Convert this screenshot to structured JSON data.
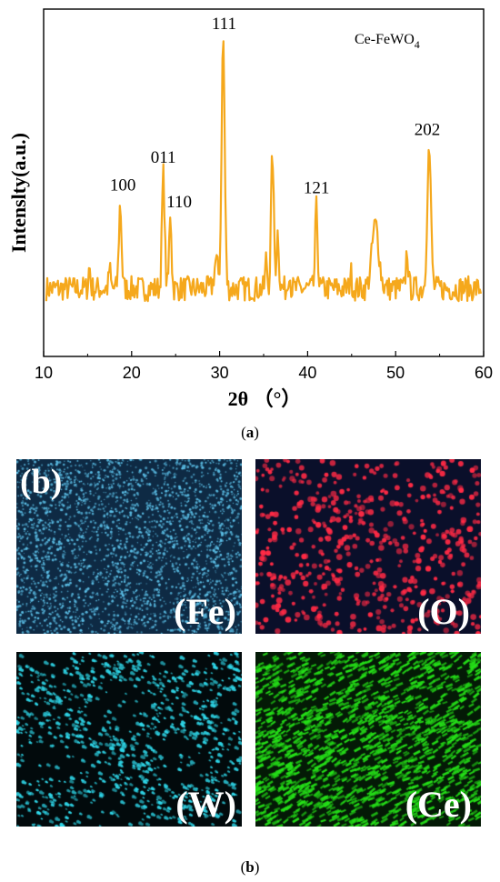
{
  "chart_data": {
    "type": "line",
    "title": "",
    "xlabel": "2θ （°）",
    "ylabel": "Intenslty(a.u.)",
    "xlim": [
      10,
      60
    ],
    "xticks": [
      10,
      20,
      30,
      40,
      50,
      60
    ],
    "legend": "Ce-FeWO4",
    "legend_parts": {
      "base": "Ce-FeWO",
      "sub": "4"
    },
    "legend_position": "top-right",
    "grid": false,
    "line_color": "#f5a81c",
    "baseline": 0.1,
    "peaks": [
      {
        "x": 15.2,
        "y": 0.18,
        "w": 0.15
      },
      {
        "x": 17.5,
        "y": 0.17,
        "w": 0.15
      },
      {
        "x": 18.7,
        "y": 0.4,
        "w": 0.22
      },
      {
        "x": 23.6,
        "y": 0.51,
        "w": 0.22
      },
      {
        "x": 24.4,
        "y": 0.38,
        "w": 0.18
      },
      {
        "x": 29.6,
        "y": 0.2,
        "w": 0.3
      },
      {
        "x": 30.4,
        "y": 1.0,
        "w": 0.25
      },
      {
        "x": 35.3,
        "y": 0.21,
        "w": 0.15
      },
      {
        "x": 36.0,
        "y": 0.58,
        "w": 0.22
      },
      {
        "x": 36.6,
        "y": 0.3,
        "w": 0.2
      },
      {
        "x": 37.9,
        "y": 0.17,
        "w": 0.15
      },
      {
        "x": 41.0,
        "y": 0.39,
        "w": 0.2
      },
      {
        "x": 44.9,
        "y": 0.16,
        "w": 0.15
      },
      {
        "x": 47.7,
        "y": 0.33,
        "w": 0.55
      },
      {
        "x": 51.3,
        "y": 0.24,
        "w": 0.18
      },
      {
        "x": 53.8,
        "y": 0.6,
        "w": 0.3
      }
    ],
    "annotations": [
      {
        "label": "111",
        "x": 30.5,
        "y": 1.0
      },
      {
        "label": "100",
        "x": 19.0,
        "y": 0.42
      },
      {
        "label": "011",
        "x": 23.6,
        "y": 0.52
      },
      {
        "label": "110",
        "x": 25.4,
        "y": 0.36
      },
      {
        "label": "121",
        "x": 41.0,
        "y": 0.41
      },
      {
        "label": "202",
        "x": 53.6,
        "y": 0.62
      }
    ]
  },
  "captions": {
    "a": "a",
    "b": "b"
  },
  "panel_b": {
    "corner_label": "(b)",
    "maps": [
      {
        "label": "(Fe)",
        "color": "#5cc0e8",
        "bg": "#0e2a44"
      },
      {
        "label": "(O)",
        "color": "#ff2a45",
        "bg": "#0a0f2a"
      },
      {
        "label": "(W)",
        "color": "#2fd8ea",
        "bg": "#020a0c"
      },
      {
        "label": "(Ce)",
        "color": "#25e018",
        "bg": "#041a06"
      }
    ]
  }
}
